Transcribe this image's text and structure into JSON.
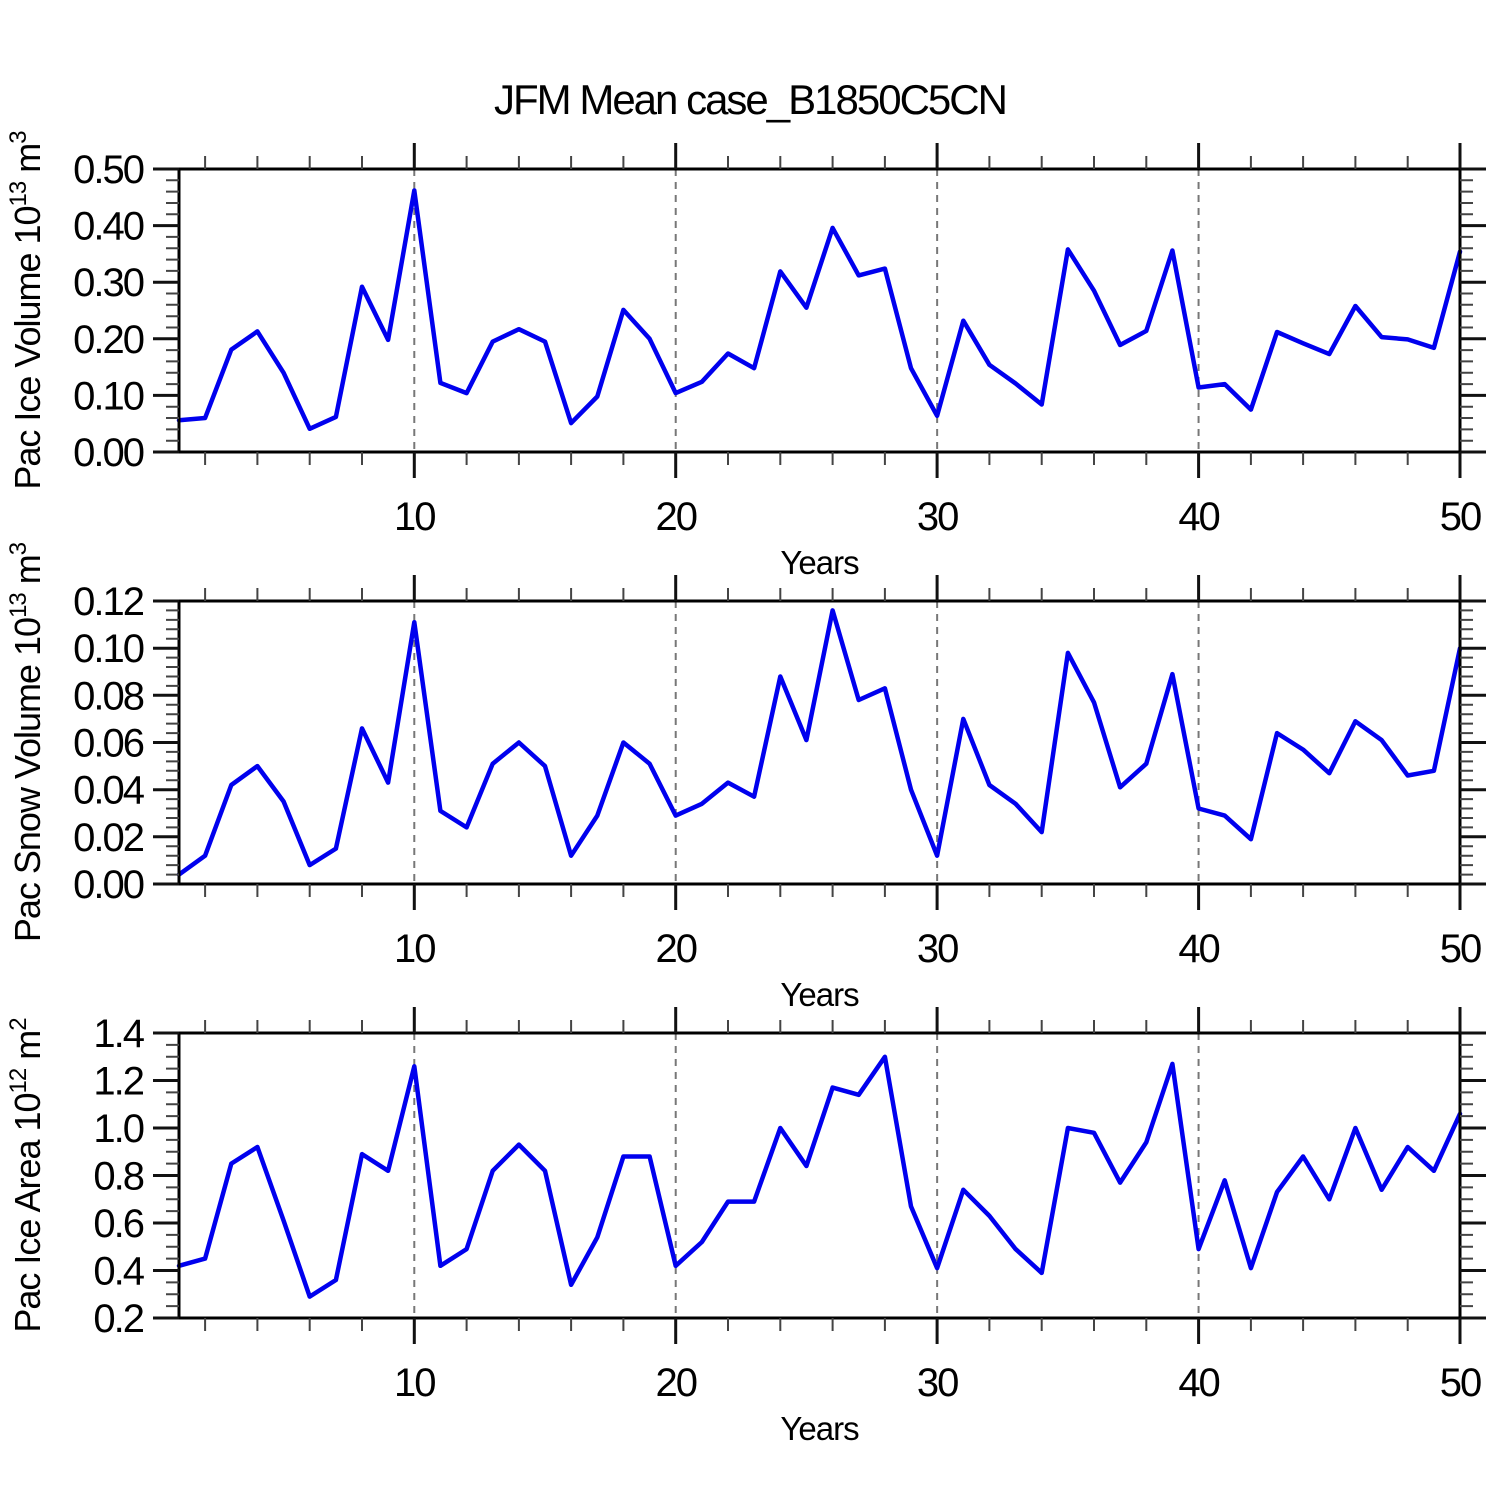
{
  "title": "JFM Mean case_B1850C5CN",
  "colors": {
    "line": "#0000ee",
    "axis": "#000000",
    "major_tick": "#111111",
    "minor_tick": "#444444",
    "grid": "#777777",
    "background": "#ffffff",
    "text": "#000000"
  },
  "chart_data": [
    {
      "type": "line",
      "panel": "pac-ice-volume",
      "ylabel_text": "Pac Ice Volume 10^13 m^3",
      "ylabel_parts": [
        {
          "text": "Pac Ice Volume 10"
        },
        {
          "text": "13",
          "sup": true
        },
        {
          "text": " m"
        },
        {
          "text": "3",
          "sup": true
        }
      ],
      "xlabel": "Years",
      "x_start": 1,
      "x_step": 1,
      "x_range": [
        1,
        50
      ],
      "ylim": [
        0.0,
        0.5
      ],
      "yticks": [
        0.0,
        0.1,
        0.2,
        0.3,
        0.4,
        0.5
      ],
      "ytick_labels": [
        "0.00",
        "0.10",
        "0.20",
        "0.30",
        "0.40",
        "0.50"
      ],
      "yminor_step": 0.02,
      "xticks": [
        10,
        20,
        30,
        40,
        50
      ],
      "xtick_labels": [
        "10",
        "20",
        "30",
        "40",
        "50"
      ],
      "xminor_step": 2,
      "grid_x": [
        10,
        20,
        30,
        40
      ],
      "grid": "vertical-dashed",
      "legend": "none",
      "values": [
        0.056,
        0.06,
        0.181,
        0.213,
        0.14,
        0.041,
        0.062,
        0.292,
        0.198,
        0.462,
        0.122,
        0.104,
        0.195,
        0.217,
        0.195,
        0.051,
        0.098,
        0.251,
        0.2,
        0.104,
        0.124,
        0.174,
        0.148,
        0.319,
        0.255,
        0.396,
        0.312,
        0.324,
        0.148,
        0.064,
        0.232,
        0.154,
        0.121,
        0.084,
        0.358,
        0.285,
        0.189,
        0.214,
        0.356,
        0.114,
        0.12,
        0.075,
        0.212,
        0.192,
        0.173,
        0.258,
        0.203,
        0.199,
        0.184,
        0.354
      ]
    },
    {
      "type": "line",
      "panel": "pac-snow-volume",
      "ylabel_text": "Pac Snow Volume 10^13 m^3",
      "ylabel_parts": [
        {
          "text": "Pac Snow Volume 10"
        },
        {
          "text": "13",
          "sup": true
        },
        {
          "text": " m"
        },
        {
          "text": "3",
          "sup": true
        }
      ],
      "xlabel": "Years",
      "x_start": 1,
      "x_step": 1,
      "x_range": [
        1,
        50
      ],
      "ylim": [
        0.0,
        0.12
      ],
      "yticks": [
        0.0,
        0.02,
        0.04,
        0.06,
        0.08,
        0.1,
        0.12
      ],
      "ytick_labels": [
        "0.00",
        "0.02",
        "0.04",
        "0.06",
        "0.08",
        "0.10",
        "0.12"
      ],
      "yminor_step": 0.004,
      "xticks": [
        10,
        20,
        30,
        40,
        50
      ],
      "xtick_labels": [
        "10",
        "20",
        "30",
        "40",
        "50"
      ],
      "xminor_step": 2,
      "grid_x": [
        10,
        20,
        30,
        40
      ],
      "grid": "vertical-dashed",
      "legend": "none",
      "values": [
        0.004,
        0.012,
        0.042,
        0.05,
        0.035,
        0.008,
        0.015,
        0.066,
        0.043,
        0.111,
        0.031,
        0.024,
        0.051,
        0.06,
        0.05,
        0.012,
        0.029,
        0.06,
        0.051,
        0.029,
        0.034,
        0.043,
        0.037,
        0.088,
        0.061,
        0.116,
        0.078,
        0.083,
        0.04,
        0.012,
        0.07,
        0.042,
        0.034,
        0.022,
        0.098,
        0.077,
        0.041,
        0.051,
        0.089,
        0.032,
        0.029,
        0.019,
        0.064,
        0.057,
        0.047,
        0.069,
        0.061,
        0.046,
        0.048,
        0.1
      ]
    },
    {
      "type": "line",
      "panel": "pac-ice-area",
      "ylabel_text": "Pac Ice Area 10^12 m^2",
      "ylabel_parts": [
        {
          "text": "Pac Ice Area 10"
        },
        {
          "text": "12",
          "sup": true
        },
        {
          "text": " m"
        },
        {
          "text": "2",
          "sup": true
        }
      ],
      "xlabel": "Years",
      "x_start": 1,
      "x_step": 1,
      "x_range": [
        1,
        50
      ],
      "ylim": [
        0.2,
        1.4
      ],
      "yticks": [
        0.2,
        0.4,
        0.6,
        0.8,
        1.0,
        1.2,
        1.4
      ],
      "ytick_labels": [
        "0.2",
        "0.4",
        "0.6",
        "0.8",
        "1.0",
        "1.2",
        "1.4"
      ],
      "yminor_step": 0.05,
      "xticks": [
        10,
        20,
        30,
        40,
        50
      ],
      "xtick_labels": [
        "10",
        "20",
        "30",
        "40",
        "50"
      ],
      "xminor_step": 2,
      "grid_x": [
        10,
        20,
        30,
        40
      ],
      "grid": "vertical-dashed",
      "legend": "none",
      "values": [
        0.42,
        0.45,
        0.85,
        0.92,
        0.61,
        0.29,
        0.36,
        0.89,
        0.82,
        1.26,
        0.42,
        0.49,
        0.82,
        0.93,
        0.82,
        0.34,
        0.54,
        0.88,
        0.88,
        0.42,
        0.52,
        0.69,
        0.69,
        1.0,
        0.84,
        1.17,
        1.14,
        1.3,
        0.67,
        0.41,
        0.74,
        0.63,
        0.49,
        0.39,
        1.0,
        0.98,
        0.77,
        0.94,
        1.27,
        0.49,
        0.78,
        0.41,
        0.73,
        0.88,
        0.7,
        1.0,
        0.74,
        0.92,
        0.82,
        1.06
      ]
    }
  ]
}
